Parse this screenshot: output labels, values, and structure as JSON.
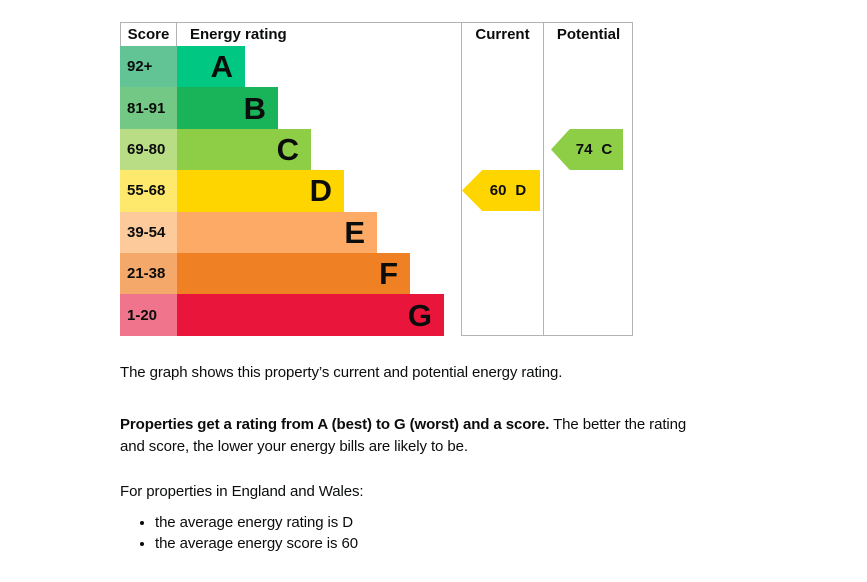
{
  "page": {
    "background": "#ffffff",
    "text_color": "#0b0c0c",
    "border_color": "#b1b4b6"
  },
  "chart_data": {
    "type": "bar",
    "variant": "epc-energy-rating",
    "headers": {
      "score": "Score",
      "rating": "Energy rating",
      "current": "Current",
      "potential": "Potential"
    },
    "bands": [
      {
        "letter": "A",
        "score_range": "92+",
        "bar_color": "#00c781",
        "score_color": "#62c394"
      },
      {
        "letter": "B",
        "score_range": "81-91",
        "bar_color": "#19b459",
        "score_color": "#74c885"
      },
      {
        "letter": "C",
        "score_range": "69-80",
        "bar_color": "#8dce46",
        "score_color": "#b9dd85"
      },
      {
        "letter": "D",
        "score_range": "55-68",
        "bar_color": "#ffd500",
        "score_color": "#ffe96d"
      },
      {
        "letter": "E",
        "score_range": "39-54",
        "bar_color": "#fcaa65",
        "score_color": "#fcca9b"
      },
      {
        "letter": "F",
        "score_range": "21-38",
        "bar_color": "#ef8023",
        "score_color": "#f4a96a"
      },
      {
        "letter": "G",
        "score_range": "1-20",
        "bar_color": "#e9153b",
        "score_color": "#f0748c"
      }
    ],
    "current": {
      "score": 60,
      "band": "D",
      "label": "60 D",
      "band_index": 3,
      "color": "#ffd500"
    },
    "potential": {
      "score": 74,
      "band": "C",
      "label": "74 C",
      "band_index": 2,
      "color": "#8dce46"
    }
  },
  "description": {
    "intro": "The graph shows this property’s current and potential energy rating.",
    "rating_bold": "Properties get a rating from A (best) to G (worst) and a score.",
    "rating_rest": " The better the rating and score, the lower your energy bills are likely to be.",
    "region_heading": "For properties in England and Wales:",
    "bullets": [
      "the average energy rating is D",
      "the average energy score is 60"
    ]
  }
}
